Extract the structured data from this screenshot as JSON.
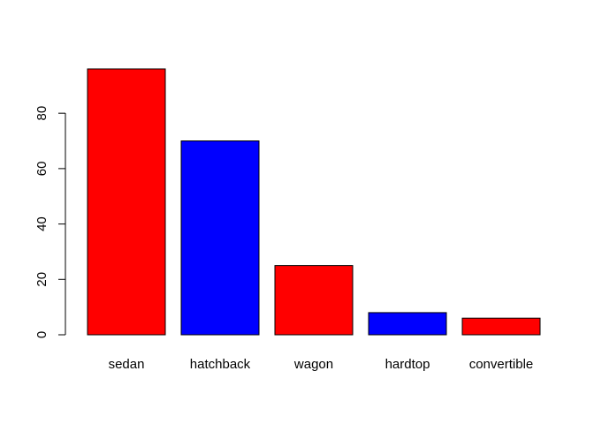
{
  "chart_data": {
    "type": "bar",
    "title": "",
    "xlabel": "",
    "ylabel": "",
    "categories": [
      "sedan",
      "hatchback",
      "wagon",
      "hardtop",
      "convertible"
    ],
    "values": [
      96,
      70,
      25,
      8,
      6
    ],
    "bar_colors": [
      "#ff0000",
      "#0000ff",
      "#ff0000",
      "#0000ff",
      "#ff0000"
    ],
    "bar_border_color": "#000000",
    "ylim": [
      0,
      96
    ],
    "yticks": [
      0,
      20,
      40,
      60,
      80
    ],
    "grid": false,
    "legend": "none"
  }
}
